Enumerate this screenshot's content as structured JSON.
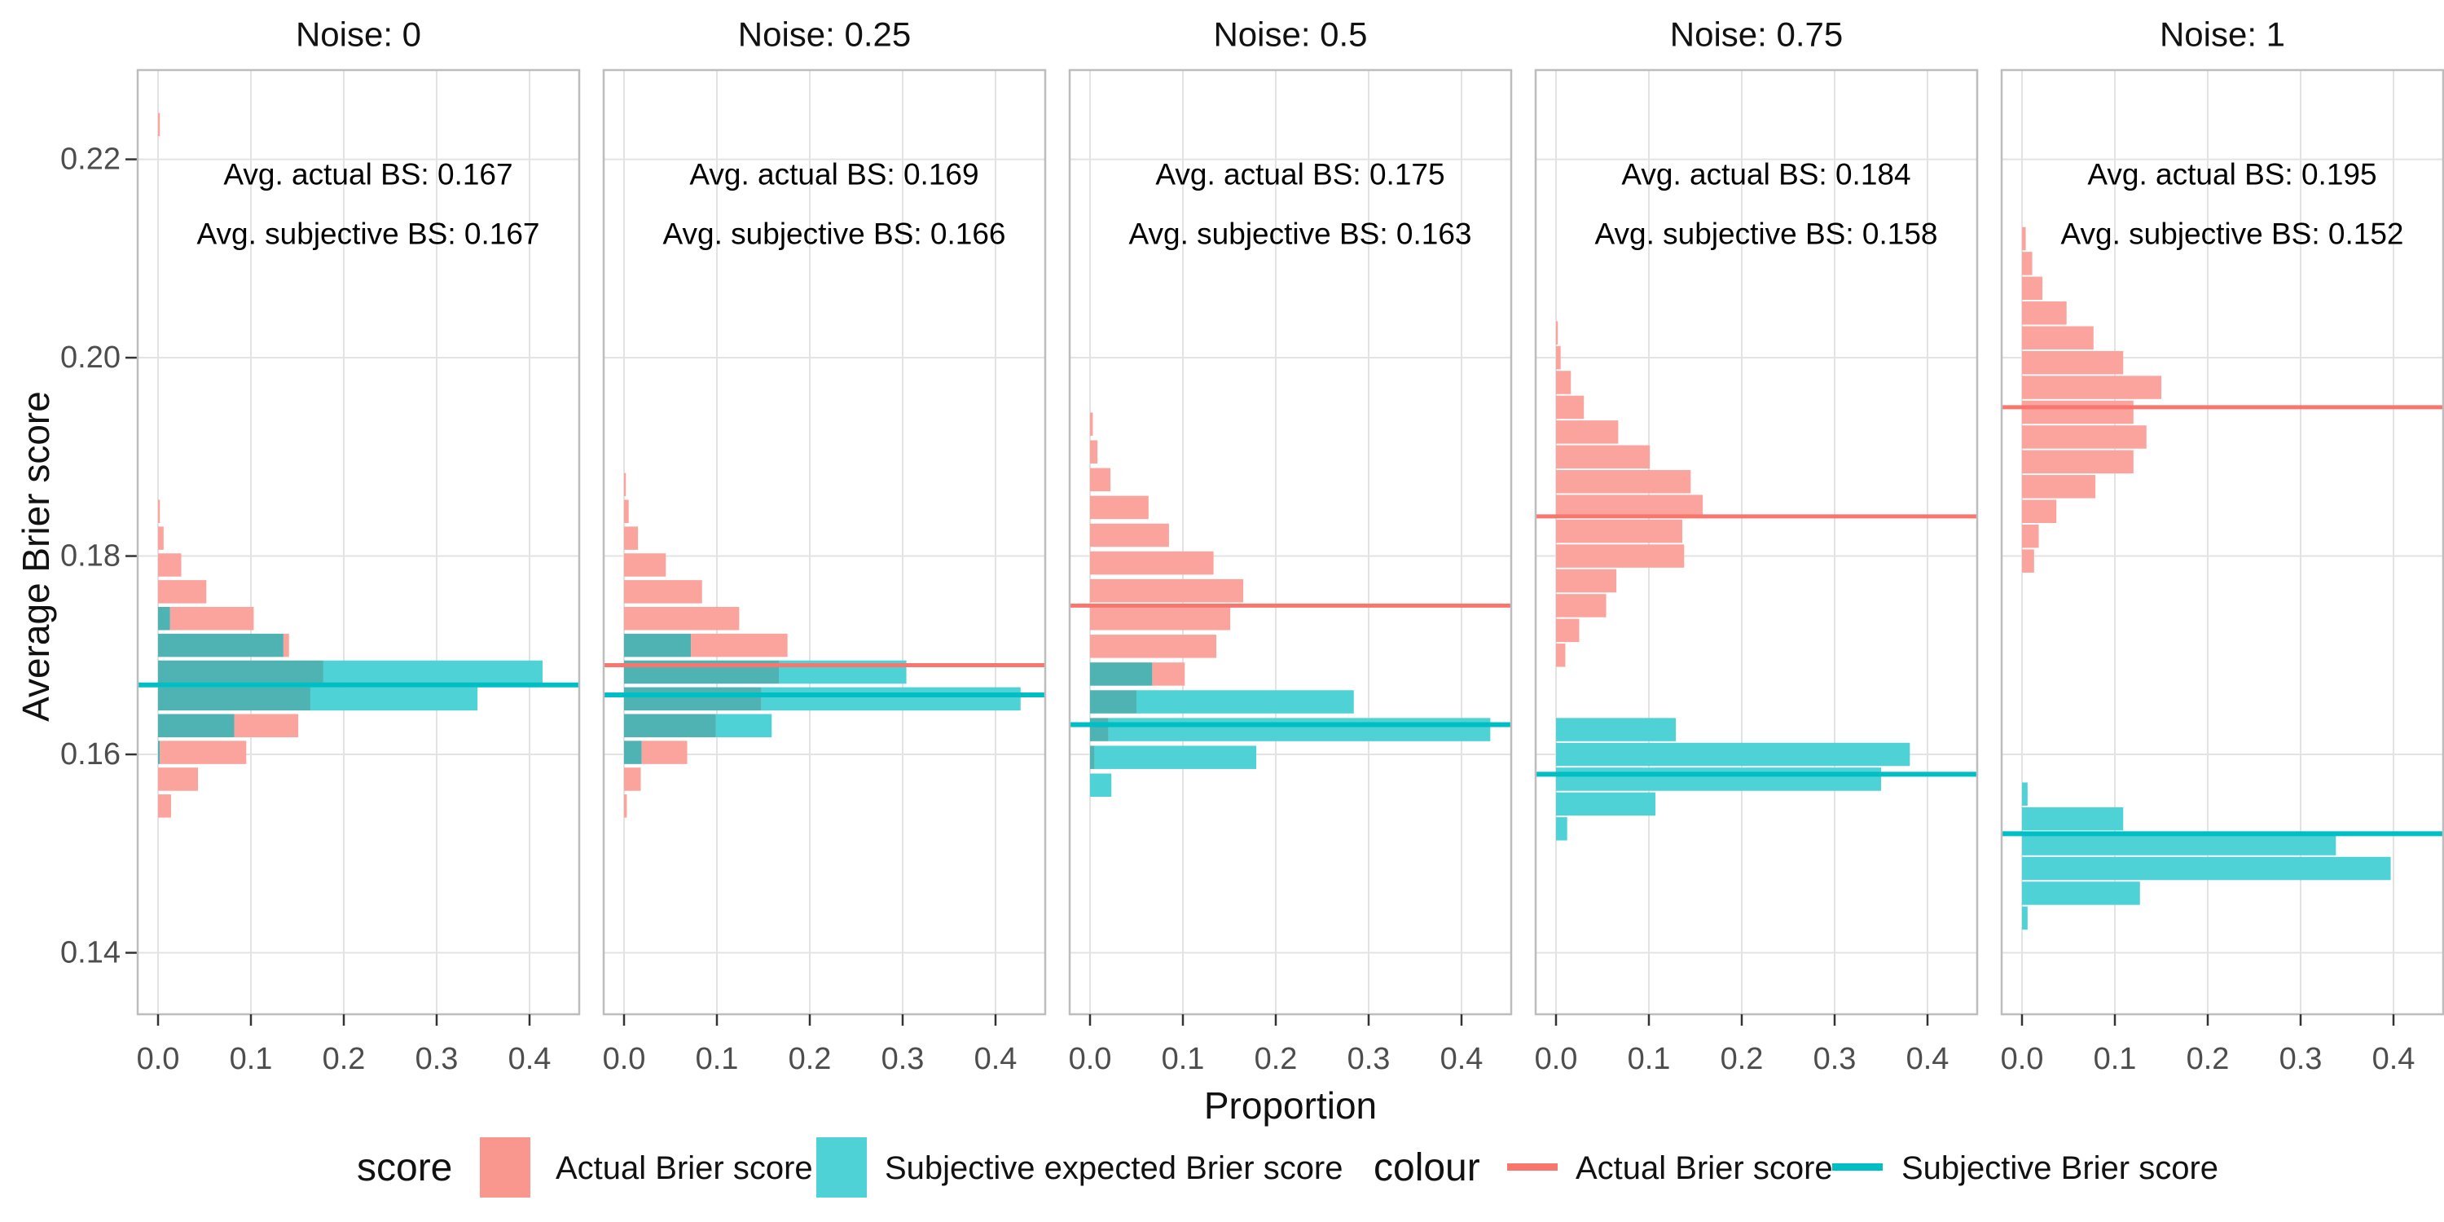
{
  "chart_data": {
    "type": "bar",
    "subtype": "horizontal-faceted-histogram",
    "xlabel": "Proportion",
    "ylabel": "Average Brier score",
    "x_ticks": [
      0.0,
      0.1,
      0.2,
      0.3,
      0.4
    ],
    "x_tick_labels": [
      "0.0",
      "0.1",
      "0.2",
      "0.3",
      "0.4"
    ],
    "y_ticks": [
      0.14,
      0.16,
      0.18,
      0.2,
      0.22
    ],
    "y_tick_labels": [
      "0.14",
      "0.16",
      "0.18",
      "0.20",
      "0.22"
    ],
    "x_domain": [
      0,
      0.4535
    ],
    "y_domain": [
      0.1338,
      0.229
    ],
    "grid": true,
    "legend_position": "bottom",
    "bin_height": 0.0025,
    "series": [
      {
        "name": "Actual Brier score",
        "role": "red-histogram"
      },
      {
        "name": "Subjective expected Brier score",
        "role": "teal-histogram"
      }
    ],
    "panels": [
      {
        "title": "Noise: 0",
        "avg_actual": 0.167,
        "avg_subjective": 0.167,
        "annotation_actual": "Avg. actual BS: 0.167",
        "annotation_subjective": "Avg. subjective BS: 0.167",
        "line_actual_y": 0.167,
        "line_subjective_y": 0.167,
        "bins": [
          [
            0.2235,
            0.002,
            0
          ],
          [
            0.1845,
            0.002,
            0
          ],
          [
            0.1818,
            0.006,
            0
          ],
          [
            0.1791,
            0.025,
            0
          ],
          [
            0.1764,
            0.052,
            0
          ],
          [
            0.1737,
            0.103,
            0.013
          ],
          [
            0.171,
            0.141,
            0.135
          ],
          [
            0.1683,
            0.178,
            0.414
          ],
          [
            0.1656,
            0.164,
            0.344
          ],
          [
            0.1629,
            0.151,
            0.082
          ],
          [
            0.1602,
            0.095,
            0.002
          ],
          [
            0.1575,
            0.043,
            0
          ],
          [
            0.1548,
            0.014,
            0
          ]
        ]
      },
      {
        "title": "Noise: 0.25",
        "avg_actual": 0.169,
        "avg_subjective": 0.166,
        "annotation_actual": "Avg. actual BS: 0.169",
        "annotation_subjective": "Avg. subjective BS: 0.166",
        "line_actual_y": 0.169,
        "line_subjective_y": 0.166,
        "bins": [
          [
            0.1872,
            0.002,
            0
          ],
          [
            0.1845,
            0.005,
            0
          ],
          [
            0.1818,
            0.015,
            0
          ],
          [
            0.1791,
            0.045,
            0
          ],
          [
            0.1764,
            0.084,
            0
          ],
          [
            0.1737,
            0.124,
            0
          ],
          [
            0.171,
            0.176,
            0.072
          ],
          [
            0.1683,
            0.167,
            0.304
          ],
          [
            0.1656,
            0.148,
            0.427
          ],
          [
            0.1629,
            0.099,
            0.159
          ],
          [
            0.1602,
            0.068,
            0.019
          ],
          [
            0.1575,
            0.018,
            0
          ],
          [
            0.1548,
            0.003,
            0
          ]
        ]
      },
      {
        "title": "Noise: 0.5",
        "avg_actual": 0.175,
        "avg_subjective": 0.163,
        "annotation_actual": "Avg. actual BS: 0.175",
        "annotation_subjective": "Avg. subjective BS: 0.163",
        "line_actual_y": 0.175,
        "line_subjective_y": 0.163,
        "bins": [
          [
            0.1933,
            0.003,
            0
          ],
          [
            0.1905,
            0.008,
            0
          ],
          [
            0.1877,
            0.022,
            0
          ],
          [
            0.1849,
            0.063,
            0
          ],
          [
            0.1821,
            0.085,
            0
          ],
          [
            0.1793,
            0.133,
            0
          ],
          [
            0.1765,
            0.165,
            0
          ],
          [
            0.1737,
            0.151,
            0
          ],
          [
            0.1709,
            0.136,
            0
          ],
          [
            0.1681,
            0.102,
            0.067
          ],
          [
            0.1653,
            0.05,
            0.284
          ],
          [
            0.1625,
            0.02,
            0.431
          ],
          [
            0.1597,
            0.005,
            0.179
          ],
          [
            0.1569,
            0,
            0.023
          ]
        ]
      },
      {
        "title": "Noise: 0.75",
        "avg_actual": 0.184,
        "avg_subjective": 0.158,
        "annotation_actual": "Avg. actual BS: 0.184",
        "annotation_subjective": "Avg. subjective BS: 0.158",
        "line_actual_y": 0.184,
        "line_subjective_y": 0.158,
        "bins": [
          [
            0.2025,
            0.002,
            0
          ],
          [
            0.2,
            0.005,
            0
          ],
          [
            0.1975,
            0.016,
            0
          ],
          [
            0.195,
            0.03,
            0
          ],
          [
            0.1925,
            0.067,
            0
          ],
          [
            0.19,
            0.101,
            0
          ],
          [
            0.1875,
            0.145,
            0
          ],
          [
            0.185,
            0.158,
            0
          ],
          [
            0.1825,
            0.136,
            0
          ],
          [
            0.18,
            0.138,
            0
          ],
          [
            0.1775,
            0.065,
            0
          ],
          [
            0.175,
            0.054,
            0
          ],
          [
            0.1725,
            0.025,
            0
          ],
          [
            0.17,
            0.01,
            0
          ],
          [
            0.1625,
            0,
            0.129
          ],
          [
            0.16,
            0,
            0.381
          ],
          [
            0.1575,
            0,
            0.35
          ],
          [
            0.155,
            0,
            0.107
          ],
          [
            0.1525,
            0,
            0.012
          ]
        ]
      },
      {
        "title": "Noise: 1",
        "avg_actual": 0.195,
        "avg_subjective": 0.152,
        "annotation_actual": "Avg. actual BS: 0.195",
        "annotation_subjective": "Avg. subjective BS: 0.152",
        "line_actual_y": 0.195,
        "line_subjective_y": 0.152,
        "bins": [
          [
            0.212,
            0.004,
            0
          ],
          [
            0.2095,
            0.011,
            0
          ],
          [
            0.207,
            0.022,
            0
          ],
          [
            0.2045,
            0.048,
            0
          ],
          [
            0.202,
            0.077,
            0
          ],
          [
            0.1995,
            0.109,
            0
          ],
          [
            0.197,
            0.15,
            0
          ],
          [
            0.1945,
            0.12,
            0
          ],
          [
            0.192,
            0.134,
            0
          ],
          [
            0.1895,
            0.12,
            0
          ],
          [
            0.187,
            0.079,
            0
          ],
          [
            0.1845,
            0.037,
            0
          ],
          [
            0.182,
            0.018,
            0
          ],
          [
            0.1795,
            0.013,
            0
          ],
          [
            0.156,
            0,
            0.006
          ],
          [
            0.1535,
            0,
            0.109
          ],
          [
            0.151,
            0,
            0.338
          ],
          [
            0.1485,
            0,
            0.397
          ],
          [
            0.146,
            0,
            0.127
          ],
          [
            0.1435,
            0,
            0.006
          ]
        ]
      }
    ]
  },
  "legend": {
    "score_title": "score",
    "score_items": [
      {
        "label": "Actual Brier score"
      },
      {
        "label": "Subjective expected Brier score"
      }
    ],
    "colour_title": "colour",
    "colour_items": [
      {
        "label": "Actual Brier score"
      },
      {
        "label": "Subjective Brier score"
      }
    ]
  },
  "colors": {
    "red_fill": "#FAA49D",
    "teal_fill": "#4ED2D6",
    "overlap_fill": "#4FB2B3",
    "red_line": "#F8766D",
    "teal_line": "#00BFC4",
    "grid": "#E3E3E3",
    "panel_border": "#BDBDBD",
    "tick_text": "#4D4D4D",
    "tick_mark": "#333333",
    "legend_red_swatch": "#F9978F",
    "legend_teal_swatch": "#4ED2D6"
  }
}
